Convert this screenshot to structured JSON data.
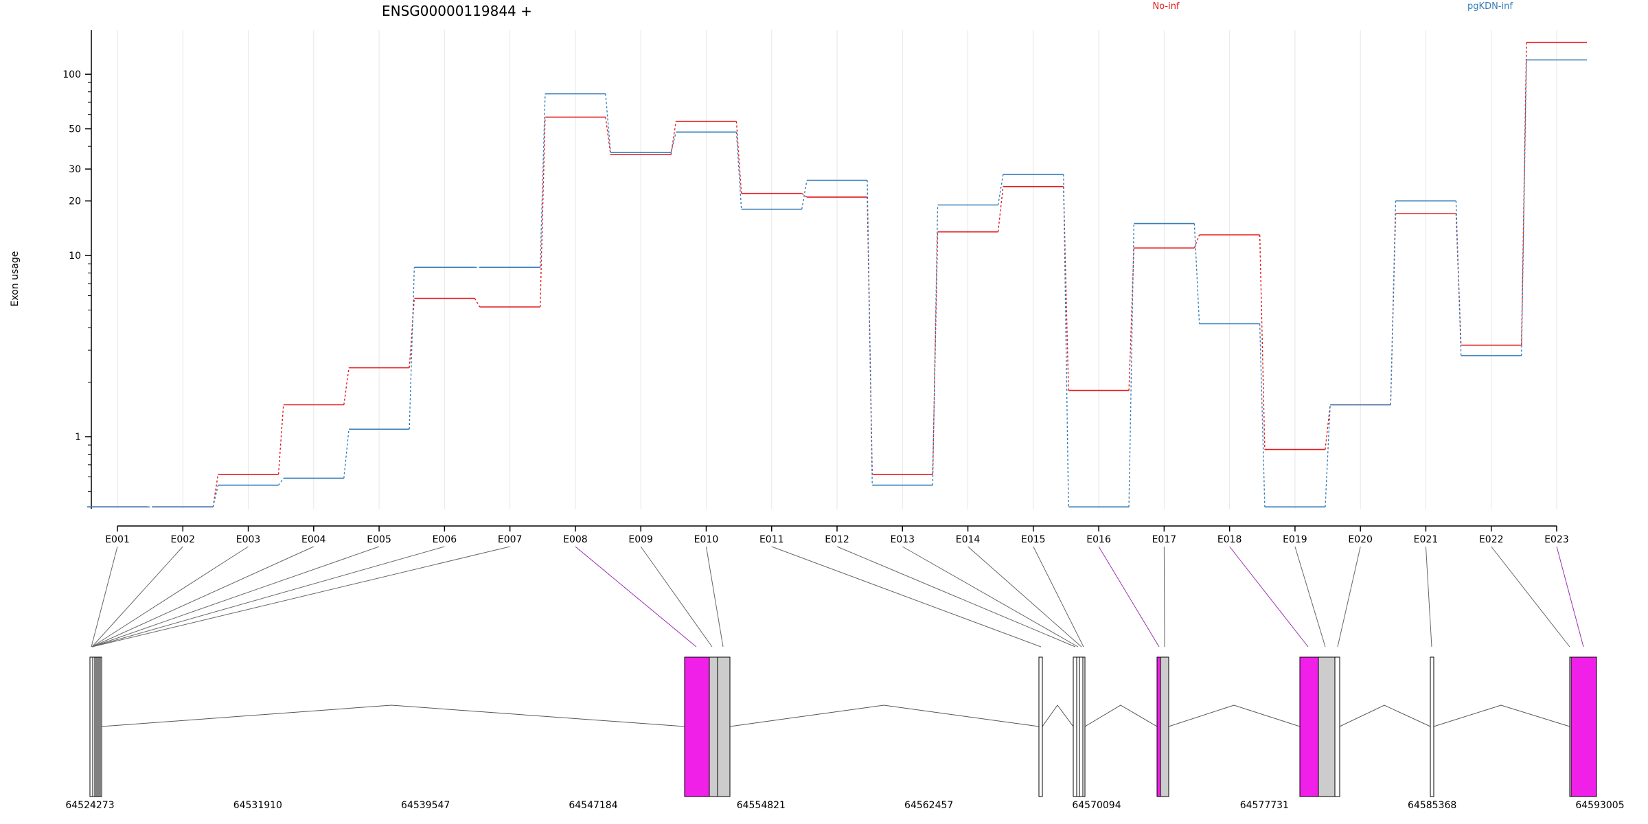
{
  "chart_data": {
    "type": "line",
    "title": "ENSG00000119844 +",
    "ylabel": "Exon usage",
    "yscale": "log",
    "ylim": [
      0.4,
      175
    ],
    "y_ticks": [
      1,
      10,
      20,
      30,
      50,
      100
    ],
    "y_tick_labels": [
      "1",
      "10",
      "20",
      "30",
      "50",
      "100"
    ],
    "grid": "vertical",
    "legend_placement": "top-right",
    "categories": [
      "E001",
      "E002",
      "E003",
      "E004",
      "E005",
      "E006",
      "E007",
      "E008",
      "E009",
      "E010",
      "E011",
      "E012",
      "E013",
      "E014",
      "E015",
      "E016",
      "E017",
      "E018",
      "E019",
      "E020",
      "E021",
      "E022",
      "E023"
    ],
    "series": [
      {
        "name": "No-inf",
        "color": "#e41a1c",
        "values": [
          0.41,
          0.41,
          0.62,
          1.5,
          2.4,
          5.8,
          5.2,
          58,
          36,
          55,
          22,
          21,
          0.62,
          13.5,
          24,
          1.8,
          11,
          13,
          0.85,
          1.5,
          17,
          3.2,
          150
        ]
      },
      {
        "name": "pgKDN-inf",
        "color": "#377eb8",
        "values": [
          0.41,
          0.41,
          0.54,
          0.59,
          1.1,
          8.6,
          8.6,
          78,
          37,
          48,
          18,
          26,
          0.54,
          19,
          28,
          0.41,
          15,
          4.2,
          0.41,
          1.5,
          20,
          2.8,
          120
        ]
      }
    ],
    "highlighted_exons": [
      "E008",
      "E016",
      "E018",
      "E023"
    ],
    "gene_model": {
      "coordinate_ticks": [
        "64524273",
        "64531910",
        "64539547",
        "64547184",
        "64554821",
        "64562457",
        "64570094",
        "64577731",
        "64585368",
        "64593005"
      ],
      "colors": {
        "highlight": "#f020e8",
        "normal": "#cccccc",
        "outline": "#000000"
      }
    }
  }
}
